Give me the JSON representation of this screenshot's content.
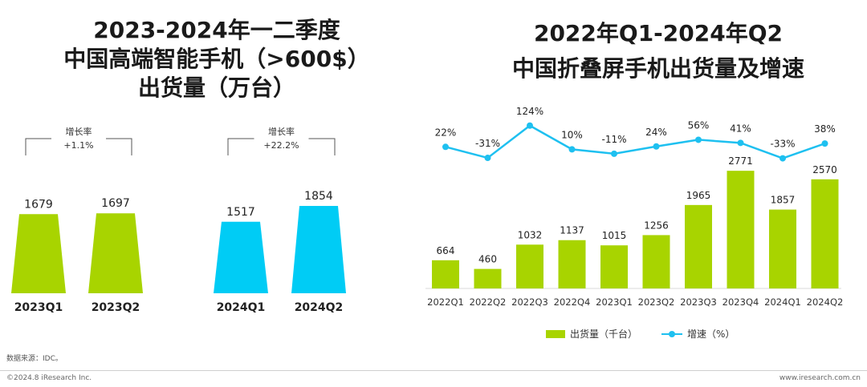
{
  "left_title": [
    "2023-2024年一二季度",
    "中国高端智能手机（>600$）",
    "出货量（万台）"
  ],
  "right_title": [
    "2022年Q1-2024年Q2",
    "中国折叠屏手机出货量及增速"
  ],
  "colors": {
    "green": "#a8d400",
    "cyan": "#00ccf5",
    "line": "#1ec0f0"
  },
  "chart_data": [
    {
      "type": "bar",
      "title": "2023-2024年一二季度 中国高端智能手机（>600$）出货量（万台）",
      "categories": [
        "2023Q1",
        "2023Q2",
        "2024Q1",
        "2024Q2"
      ],
      "values": [
        1679,
        1697,
        1517,
        1854
      ],
      "groups": [
        {
          "categories": [
            "2023Q1",
            "2023Q2"
          ],
          "growth_label": "增长率",
          "growth_value": "+1.1%",
          "color": "#a8d400"
        },
        {
          "categories": [
            "2024Q1",
            "2024Q2"
          ],
          "growth_label": "增长率",
          "growth_value": "+22.2%",
          "color": "#00ccf5"
        }
      ]
    },
    {
      "type": "bar+line",
      "title": "2022年Q1-2024年Q2 中国折叠屏手机出货量及增速",
      "categories": [
        "2022Q1",
        "2022Q2",
        "2022Q3",
        "2022Q4",
        "2023Q1",
        "2023Q2",
        "2023Q3",
        "2023Q4",
        "2024Q1",
        "2024Q2"
      ],
      "series": [
        {
          "name": "出货量（千台）",
          "type": "bar",
          "values": [
            664,
            460,
            1032,
            1137,
            1015,
            1256,
            1965,
            2771,
            1857,
            2570
          ]
        },
        {
          "name": "增速（%）",
          "type": "line",
          "values": [
            22,
            -31,
            124,
            10,
            -11,
            24,
            56,
            41,
            -33,
            38
          ]
        }
      ],
      "legend": "bottom"
    }
  ],
  "source": "数据来源：IDC。",
  "copyright": "©2024.8 iResearch Inc.",
  "website": "www.iresearch.com.cn"
}
